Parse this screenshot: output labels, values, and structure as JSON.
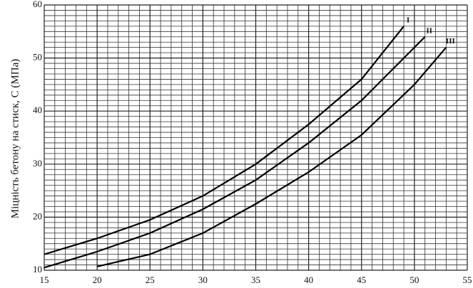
{
  "chart_data": {
    "type": "line",
    "y_label": "Міцність бетону на стиск, С (МПа)",
    "xlim": [
      15,
      55
    ],
    "ylim": [
      10,
      60
    ],
    "xticks": [
      15,
      20,
      25,
      30,
      35,
      40,
      45,
      50,
      55
    ],
    "yticks": [
      10,
      20,
      30,
      40,
      50,
      60
    ],
    "grid": true,
    "series": [
      {
        "name": "I",
        "color": "#000000",
        "x": [
          15,
          20,
          25,
          30,
          35,
          40,
          45,
          49
        ],
        "values": [
          13,
          16,
          19.5,
          24,
          30,
          37.5,
          46,
          56
        ]
      },
      {
        "name": "II",
        "color": "#000000",
        "x": [
          15,
          20,
          25,
          30,
          35,
          40,
          45,
          51
        ],
        "values": [
          10.5,
          13.5,
          17,
          21.5,
          27,
          34,
          42,
          54
        ]
      },
      {
        "name": "III",
        "color": "#000000",
        "x": [
          20,
          25,
          30,
          35,
          40,
          45,
          50,
          53
        ],
        "values": [
          10.7,
          13,
          17,
          22.5,
          28.5,
          35.5,
          45,
          52
        ]
      }
    ]
  }
}
